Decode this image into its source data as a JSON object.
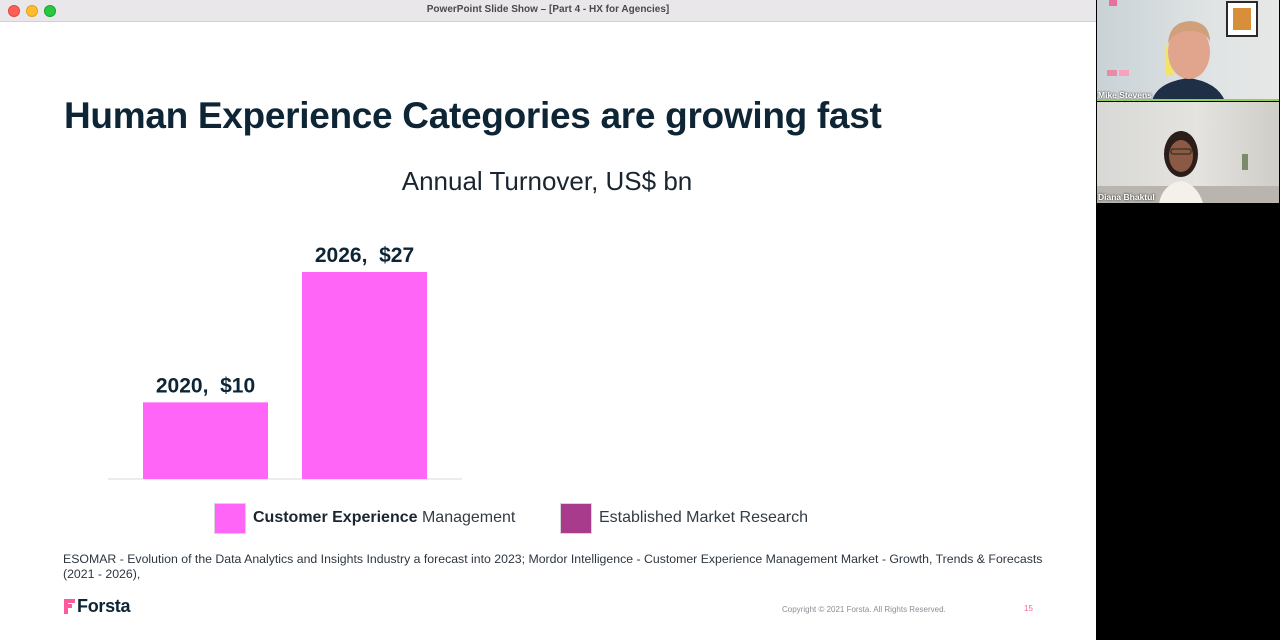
{
  "window": {
    "title": "PowerPoint Slide Show – [Part 4 - HX for Agencies]"
  },
  "slide": {
    "title": "Human Experience Categories are growing fast",
    "legend": [
      {
        "bold": "Customer Experience",
        "rest": " Management",
        "color": "#ff66f7"
      },
      {
        "bold": "",
        "rest": "Established Market Research",
        "color": "#a93b8c"
      }
    ],
    "source_note": "ESOMAR - Evolution of the Data Analytics and Insights Industry a forecast into 2023; Mordor Intelligence - Customer Experience Management Market - Growth, Trends & Forecasts (2021 - 2026),",
    "logo_text": "Forsta",
    "copyright": "Copyright © 2021 Forsta. All Rights Reserved.",
    "page_number": "15"
  },
  "chart_data": {
    "type": "bar",
    "title": "Annual Turnover, US$ bn",
    "categories": [
      "2020",
      "2026"
    ],
    "series": [
      {
        "name": "Customer Experience Management",
        "values": [
          10,
          27
        ],
        "color": "#ff66f7"
      }
    ],
    "data_labels": [
      "2020,  $10",
      "2026,  $27"
    ],
    "ylim": [
      0,
      27
    ],
    "grid": false
  },
  "participants": [
    {
      "name": "Mike Stevens",
      "active_speaker": true
    },
    {
      "name": "Diana Bhaktul",
      "active_speaker": false
    }
  ]
}
